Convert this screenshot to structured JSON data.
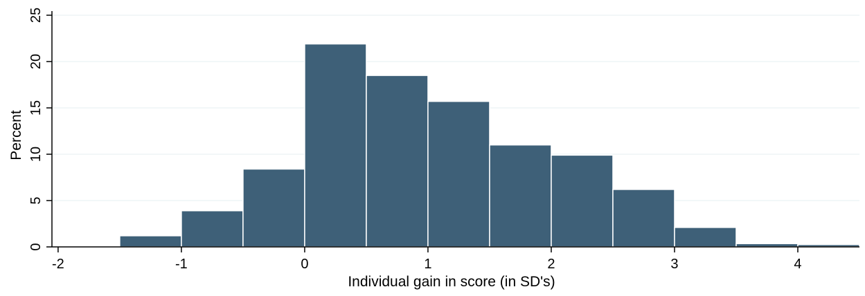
{
  "chart_data": {
    "type": "bar",
    "subtype": "histogram",
    "title": "",
    "xlabel": "Individual gain in score (in SD's)",
    "ylabel": "Percent",
    "xlim": [
      -2.05,
      4.5
    ],
    "ylim": [
      0,
      25
    ],
    "bin_width": 0.5,
    "bins": [
      {
        "start": -2.0,
        "end": -1.5,
        "value": 0.1
      },
      {
        "start": -1.5,
        "end": -1.0,
        "value": 1.2
      },
      {
        "start": -1.0,
        "end": -0.5,
        "value": 3.9
      },
      {
        "start": -0.5,
        "end": 0.0,
        "value": 8.4
      },
      {
        "start": 0.0,
        "end": 0.5,
        "value": 21.9
      },
      {
        "start": 0.5,
        "end": 1.0,
        "value": 18.5
      },
      {
        "start": 1.0,
        "end": 1.5,
        "value": 15.7
      },
      {
        "start": 1.5,
        "end": 2.0,
        "value": 11.0
      },
      {
        "start": 2.0,
        "end": 2.5,
        "value": 9.9
      },
      {
        "start": 2.5,
        "end": 3.0,
        "value": 6.2
      },
      {
        "start": 3.0,
        "end": 3.5,
        "value": 2.1
      },
      {
        "start": 3.5,
        "end": 4.0,
        "value": 0.35
      },
      {
        "start": 4.0,
        "end": 4.5,
        "value": 0.25
      }
    ],
    "x_ticks": [
      -2,
      -1,
      0,
      1,
      2,
      3,
      4
    ],
    "x_tick_labels": [
      "-2",
      "-1",
      "0",
      "1",
      "2",
      "3",
      "4"
    ],
    "y_ticks": [
      0,
      5,
      10,
      15,
      20,
      25
    ],
    "y_tick_labels": [
      "0",
      "5",
      "10",
      "15",
      "20",
      "25"
    ],
    "grid": true,
    "legend": "none",
    "colors": {
      "bar_fill": "#3e6078",
      "bar_edge": "#ffffff",
      "grid": "#eaf2f3",
      "axis": "#000000"
    }
  }
}
